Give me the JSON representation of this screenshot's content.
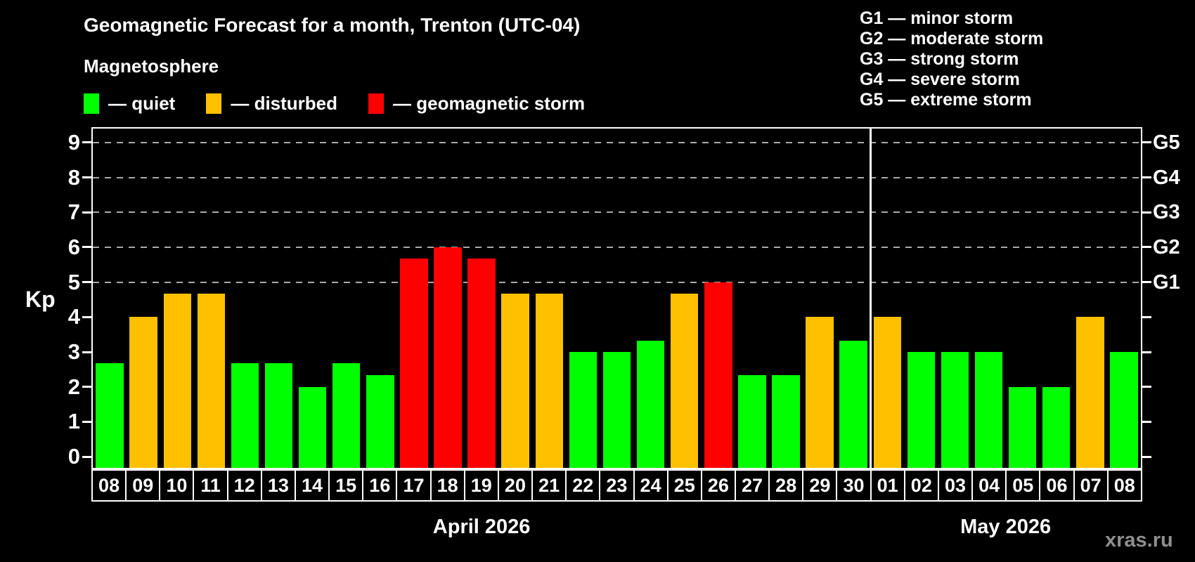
{
  "header": {
    "title": "Geomagnetic Forecast for a month, Trenton (UTC-04)",
    "subtitle": "Magnetosphere",
    "legend": [
      {
        "key": "quiet",
        "label": "— quiet",
        "color": "#00ff00"
      },
      {
        "key": "disturbed",
        "label": "— disturbed",
        "color": "#ffc000"
      },
      {
        "key": "storm",
        "label": "— geomagnetic storm",
        "color": "#ff0000"
      }
    ],
    "gscale_legend": [
      "G1 — minor storm",
      "G2 — moderate storm",
      "G3 — strong storm",
      "G4 — severe storm",
      "G5 — extreme storm"
    ]
  },
  "chart_data": {
    "type": "bar",
    "title": "Geomagnetic Forecast for a month, Trenton (UTC-04)",
    "ylabel": "Kp",
    "ylim": [
      0,
      9
    ],
    "yticks": [
      0,
      1,
      2,
      3,
      4,
      5,
      6,
      7,
      8,
      9
    ],
    "gridlines": [
      5,
      6,
      7,
      8,
      9
    ],
    "legend_position": "top",
    "right_axis": [
      {
        "kp": 5,
        "label": "G1"
      },
      {
        "kp": 6,
        "label": "G2"
      },
      {
        "kp": 7,
        "label": "G3"
      },
      {
        "kp": 8,
        "label": "G4"
      },
      {
        "kp": 9,
        "label": "G5"
      }
    ],
    "status_colors": {
      "quiet": "#00ff00",
      "disturbed": "#ffc000",
      "storm": "#ff0000"
    },
    "months": [
      {
        "label": "April 2026",
        "bars": 23
      },
      {
        "label": "May 2026",
        "bars": 8
      }
    ],
    "bars": [
      {
        "day": "08",
        "kp": 2.67,
        "status": "quiet"
      },
      {
        "day": "09",
        "kp": 4,
        "status": "disturbed"
      },
      {
        "day": "10",
        "kp": 4.67,
        "status": "disturbed"
      },
      {
        "day": "11",
        "kp": 4.67,
        "status": "disturbed"
      },
      {
        "day": "12",
        "kp": 2.67,
        "status": "quiet"
      },
      {
        "day": "13",
        "kp": 2.67,
        "status": "quiet"
      },
      {
        "day": "14",
        "kp": 2,
        "status": "quiet"
      },
      {
        "day": "15",
        "kp": 2.67,
        "status": "quiet"
      },
      {
        "day": "16",
        "kp": 2.33,
        "status": "quiet"
      },
      {
        "day": "17",
        "kp": 5.67,
        "status": "storm"
      },
      {
        "day": "18",
        "kp": 6,
        "status": "storm"
      },
      {
        "day": "19",
        "kp": 5.67,
        "status": "storm"
      },
      {
        "day": "20",
        "kp": 4.67,
        "status": "disturbed"
      },
      {
        "day": "21",
        "kp": 4.67,
        "status": "disturbed"
      },
      {
        "day": "22",
        "kp": 3,
        "status": "quiet"
      },
      {
        "day": "23",
        "kp": 3,
        "status": "quiet"
      },
      {
        "day": "24",
        "kp": 3.33,
        "status": "quiet"
      },
      {
        "day": "25",
        "kp": 4.67,
        "status": "disturbed"
      },
      {
        "day": "26",
        "kp": 5,
        "status": "storm"
      },
      {
        "day": "27",
        "kp": 2.33,
        "status": "quiet"
      },
      {
        "day": "28",
        "kp": 2.33,
        "status": "quiet"
      },
      {
        "day": "29",
        "kp": 4,
        "status": "disturbed"
      },
      {
        "day": "30",
        "kp": 3.33,
        "status": "quiet"
      },
      {
        "day": "01",
        "kp": 4,
        "status": "disturbed"
      },
      {
        "day": "02",
        "kp": 3,
        "status": "quiet"
      },
      {
        "day": "03",
        "kp": 3,
        "status": "quiet"
      },
      {
        "day": "04",
        "kp": 3,
        "status": "quiet"
      },
      {
        "day": "05",
        "kp": 2,
        "status": "quiet"
      },
      {
        "day": "06",
        "kp": 2,
        "status": "quiet"
      },
      {
        "day": "07",
        "kp": 4,
        "status": "disturbed"
      },
      {
        "day": "08",
        "kp": 3,
        "status": "quiet"
      }
    ]
  },
  "footer": {
    "watermark": "xras.ru"
  }
}
